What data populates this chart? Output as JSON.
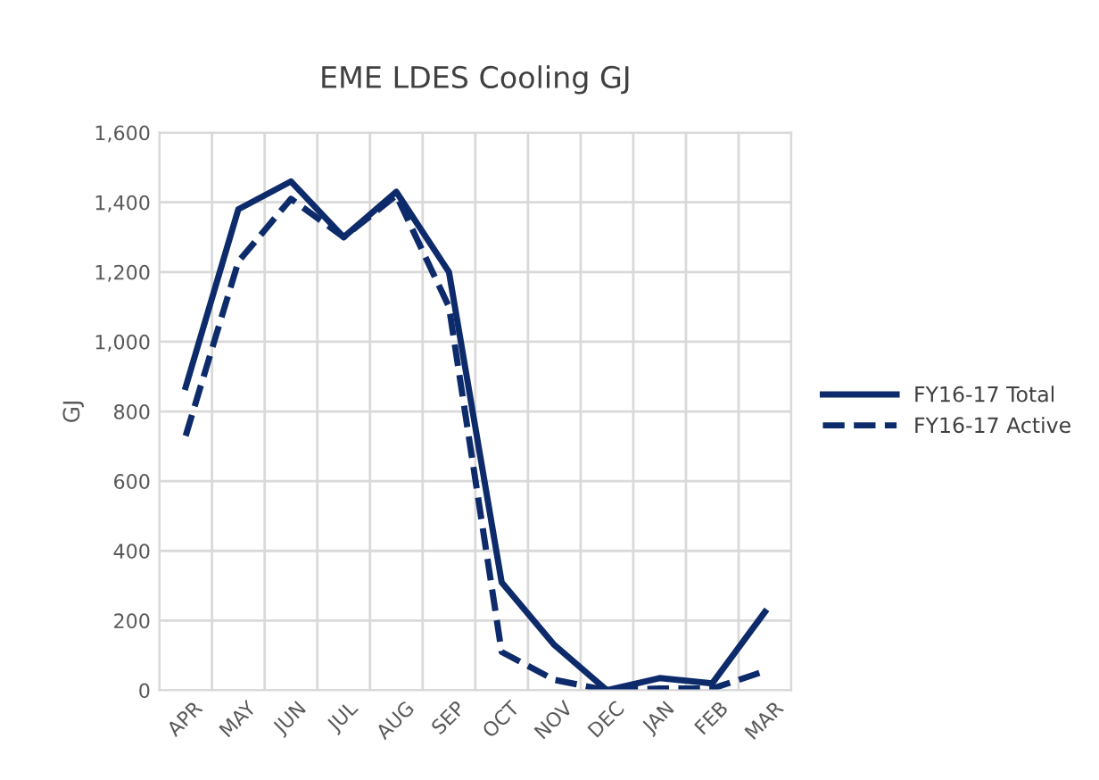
{
  "chart_data": {
    "type": "line",
    "title": "EME LDES Cooling GJ",
    "ylabel": "GJ",
    "categories": [
      "APR",
      "MAY",
      "JUN",
      "JUL",
      "AUG",
      "SEP",
      "OCT",
      "NOV",
      "DEC",
      "JAN",
      "FEB",
      "MAR"
    ],
    "series": [
      {
        "name": "FY16-17 Total",
        "color": "#0d2b6b",
        "line_style": "solid",
        "values": [
          870,
          1380,
          1460,
          1300,
          1430,
          1200,
          310,
          130,
          0,
          35,
          20,
          225
        ]
      },
      {
        "name": "FY16-17 Active",
        "color": "#0d2b6b",
        "line_style": "dashed",
        "values": [
          730,
          1230,
          1410,
          1300,
          1420,
          1100,
          110,
          30,
          0,
          5,
          5,
          55
        ]
      }
    ],
    "ylim": [
      0,
      1600
    ],
    "yticks": [
      {
        "value": 0,
        "label": "0"
      },
      {
        "value": 200,
        "label": "200"
      },
      {
        "value": 400,
        "label": "400"
      },
      {
        "value": 600,
        "label": "600"
      },
      {
        "value": 800,
        "label": "800"
      },
      {
        "value": 1000,
        "label": "1,000"
      },
      {
        "value": 1200,
        "label": "1,200"
      },
      {
        "value": 1400,
        "label": "1,400"
      },
      {
        "value": 1600,
        "label": "1,600"
      }
    ],
    "grid": true,
    "legend": "right"
  }
}
